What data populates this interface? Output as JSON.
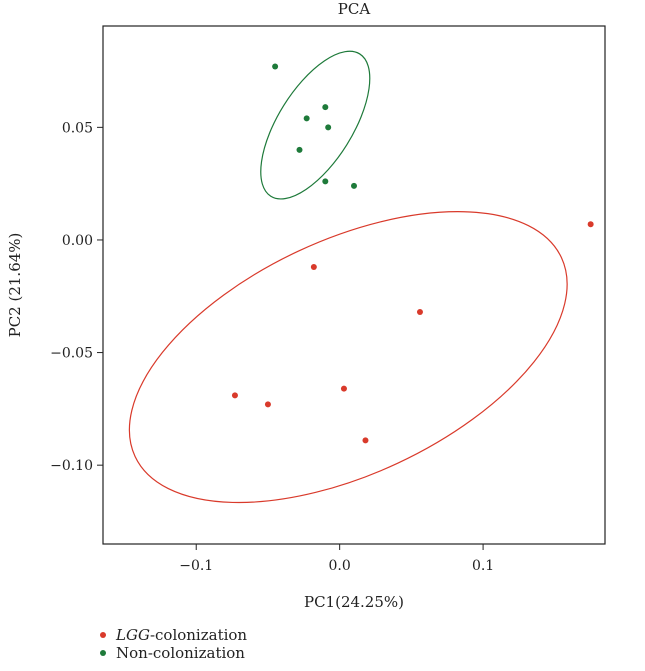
{
  "chart_data": {
    "type": "scatter",
    "title": "PCA",
    "xlabel": "PC1(24.25%)",
    "ylabel": "PC2 (21.64%)",
    "xlim": [
      -0.165,
      0.185
    ],
    "ylim": [
      -0.135,
      0.095
    ],
    "x_ticks": [
      -0.1,
      0.0,
      0.1
    ],
    "x_tick_labels": [
      "−0.1",
      "0.0",
      "0.1"
    ],
    "y_ticks": [
      0.05,
      0.0,
      -0.05,
      -0.1
    ],
    "y_tick_labels": [
      "0.05",
      "0.00",
      "−0.05",
      "−0.10"
    ],
    "grid": false,
    "legend_position": "bottom-left",
    "series": [
      {
        "name_italic": "LGG",
        "name_rest": "-colonization",
        "color": "#d93a2b",
        "points": [
          {
            "x": -0.073,
            "y": -0.069
          },
          {
            "x": -0.05,
            "y": -0.073
          },
          {
            "x": -0.018,
            "y": -0.012
          },
          {
            "x": 0.003,
            "y": -0.066
          },
          {
            "x": 0.018,
            "y": -0.089
          },
          {
            "x": 0.056,
            "y": -0.032
          },
          {
            "x": 0.175,
            "y": 0.007
          }
        ],
        "ellipse": {
          "cx": 0.006,
          "cy": -0.052,
          "rx": 0.164,
          "ry": 0.052,
          "angle_deg": 25
        }
      },
      {
        "name": "Non-colonization",
        "color": "#1e7a3a",
        "points": [
          {
            "x": -0.045,
            "y": 0.077
          },
          {
            "x": -0.01,
            "y": 0.059
          },
          {
            "x": -0.023,
            "y": 0.054
          },
          {
            "x": -0.008,
            "y": 0.05
          },
          {
            "x": -0.028,
            "y": 0.04
          },
          {
            "x": -0.01,
            "y": 0.026
          },
          {
            "x": 0.01,
            "y": 0.024
          }
        ],
        "ellipse": {
          "cx": -0.017,
          "cy": 0.051,
          "rx": 0.0585,
          "ry": 0.0165,
          "angle_deg": 58
        }
      }
    ]
  }
}
